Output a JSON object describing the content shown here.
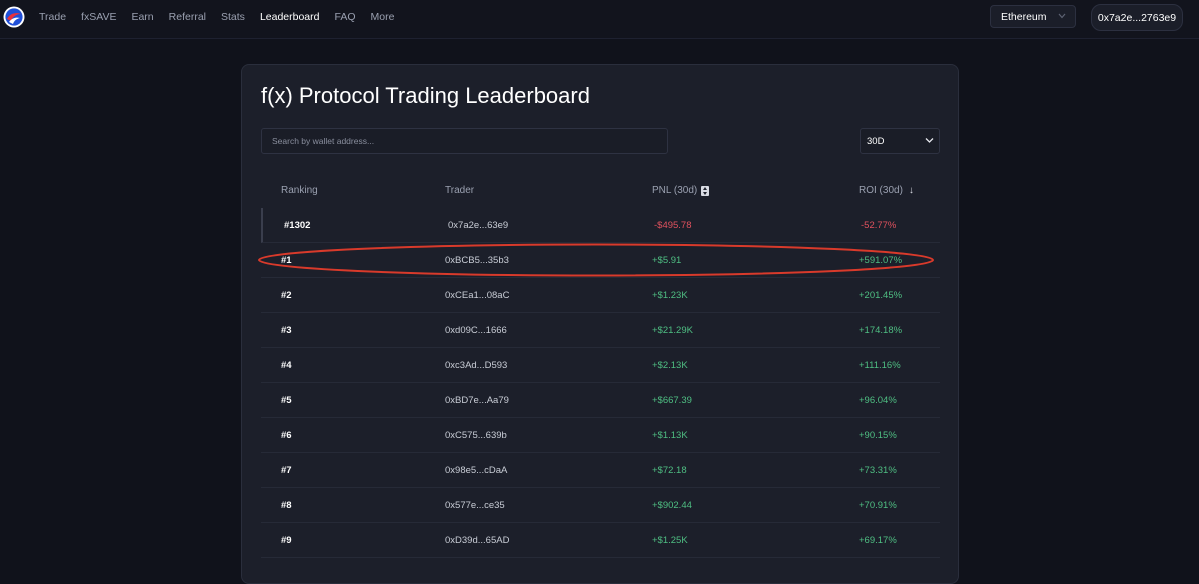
{
  "nav": {
    "items": [
      {
        "label": "Trade",
        "active": false
      },
      {
        "label": "fxSAVE",
        "active": false
      },
      {
        "label": "Earn",
        "active": false
      },
      {
        "label": "Referral",
        "active": false
      },
      {
        "label": "Stats",
        "active": false
      },
      {
        "label": "Leaderboard",
        "active": true
      },
      {
        "label": "FAQ",
        "active": false
      },
      {
        "label": "More",
        "active": false
      }
    ],
    "network": "Ethereum",
    "wallet": "0x7a2e...2763e9"
  },
  "leaderboard": {
    "title": "f(x) Protocol Trading Leaderboard",
    "search_placeholder": "Search by wallet address...",
    "period": "30D",
    "columns": {
      "ranking": "Ranking",
      "trader": "Trader",
      "pnl": "PNL (30d)",
      "roi": "ROI (30d)"
    },
    "rows": [
      {
        "rank": "#1302",
        "trader": "0x7a2e...63e9",
        "pnl": "-$495.78",
        "roi": "-52.77%",
        "positive": false,
        "highlight": true
      },
      {
        "rank": "#1",
        "trader": "0xBCB5...35b3",
        "pnl": "+$5.91",
        "roi": "+591.07%",
        "positive": true,
        "highlight": false
      },
      {
        "rank": "#2",
        "trader": "0xCEa1...08aC",
        "pnl": "+$1.23K",
        "roi": "+201.45%",
        "positive": true,
        "highlight": false
      },
      {
        "rank": "#3",
        "trader": "0xd09C...1666",
        "pnl": "+$21.29K",
        "roi": "+174.18%",
        "positive": true,
        "highlight": false
      },
      {
        "rank": "#4",
        "trader": "0xc3Ad...D593",
        "pnl": "+$2.13K",
        "roi": "+111.16%",
        "positive": true,
        "highlight": false
      },
      {
        "rank": "#5",
        "trader": "0xBD7e...Aa79",
        "pnl": "+$667.39",
        "roi": "+96.04%",
        "positive": true,
        "highlight": false
      },
      {
        "rank": "#6",
        "trader": "0xC575...639b",
        "pnl": "+$1.13K",
        "roi": "+90.15%",
        "positive": true,
        "highlight": false
      },
      {
        "rank": "#7",
        "trader": "0x98e5...cDaA",
        "pnl": "+$72.18",
        "roi": "+73.31%",
        "positive": true,
        "highlight": false
      },
      {
        "rank": "#8",
        "trader": "0x577e...ce35",
        "pnl": "+$902.44",
        "roi": "+70.91%",
        "positive": true,
        "highlight": false
      },
      {
        "rank": "#9",
        "trader": "0xD39d...65AD",
        "pnl": "+$1.25K",
        "roi": "+69.17%",
        "positive": true,
        "highlight": false
      }
    ]
  },
  "colors": {
    "positive": "#4fbf83",
    "negative": "#e0525e",
    "annotation": "#d93a2b"
  }
}
